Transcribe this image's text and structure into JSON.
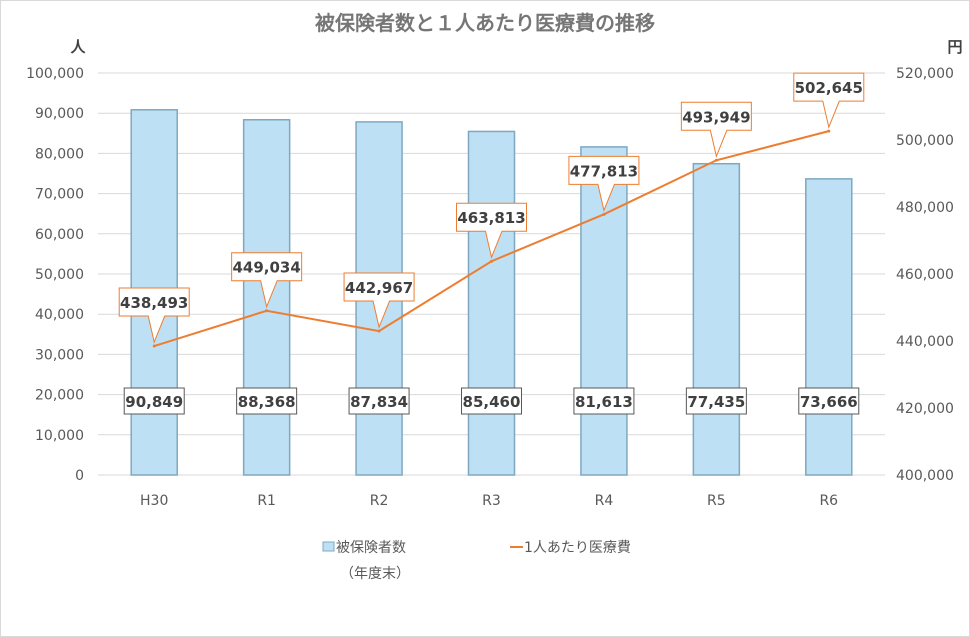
{
  "chart_data": {
    "type": "bar+line",
    "title": "被保険者数と１人あたり医療費の推移",
    "categories": [
      "H30",
      "R1",
      "R2",
      "R3",
      "R4",
      "R5",
      "R6"
    ],
    "left_axis": {
      "unit_label": "人",
      "ylim": [
        0,
        100000
      ],
      "ticks": [
        "0",
        "10,000",
        "20,000",
        "30,000",
        "40,000",
        "50,000",
        "60,000",
        "70,000",
        "80,000",
        "90,000",
        "100,000"
      ]
    },
    "right_axis": {
      "unit_label": "円",
      "ylim": [
        400000,
        520000
      ],
      "ticks": [
        "400,000",
        "420,000",
        "440,000",
        "460,000",
        "480,000",
        "500,000",
        "520,000"
      ]
    },
    "grid": true,
    "legend_placement": "bottom",
    "series": [
      {
        "name": "被保険者数",
        "name_line2": "（年度末）",
        "type": "bar",
        "axis": "left",
        "color": "#bde0f4",
        "values": [
          90849,
          88368,
          87834,
          85460,
          81613,
          77435,
          73666
        ],
        "labels": [
          "90,849",
          "88,368",
          "87,834",
          "85,460",
          "81,613",
          "77,435",
          "73,666"
        ]
      },
      {
        "name": "1人あたり医療費",
        "type": "line",
        "axis": "right",
        "color": "#ed7d31",
        "values": [
          438493,
          449034,
          442967,
          463813,
          477813,
          493949,
          502645
        ],
        "labels": [
          "438,493",
          "449,034",
          "442,967",
          "463,813",
          "477,813",
          "493,949",
          "502,645"
        ]
      }
    ]
  }
}
